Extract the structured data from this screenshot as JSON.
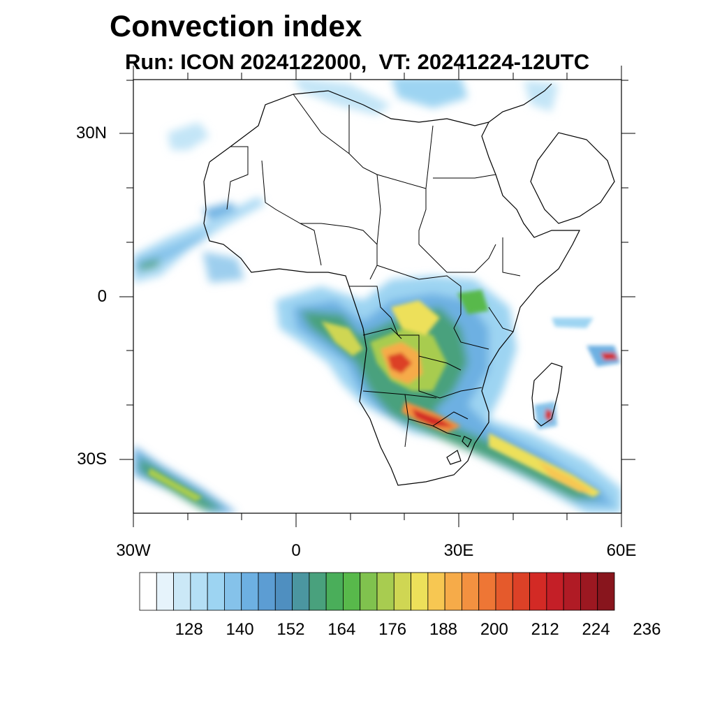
{
  "title": "Convection index",
  "subtitle": "Run: ICON 2024122000,  VT: 20241224-12UTC",
  "axes": {
    "lat_labels": [
      "30N",
      "0",
      "30S"
    ],
    "lon_labels": [
      "30W",
      "0",
      "30E",
      "60E"
    ]
  },
  "colorbar": {
    "labels": [
      "128",
      "140",
      "152",
      "164",
      "176",
      "188",
      "200",
      "212",
      "224",
      "236"
    ],
    "colors": [
      "#ffffff",
      "#e6f3fb",
      "#cbe8f7",
      "#b4dff5",
      "#9dd4f2",
      "#85c2ea",
      "#6db0e2",
      "#5c9dd3",
      "#4f8fc0",
      "#4b96a0",
      "#49a17d",
      "#4aae5a",
      "#58b94b",
      "#80c24e",
      "#a8cc50",
      "#cfd653",
      "#ede05a",
      "#f7c752",
      "#f6ab49",
      "#f39140",
      "#ee7635",
      "#e55a2c",
      "#dc4127",
      "#d32a25",
      "#c41f27",
      "#b01b25",
      "#9c1821",
      "#88151d"
    ]
  }
}
